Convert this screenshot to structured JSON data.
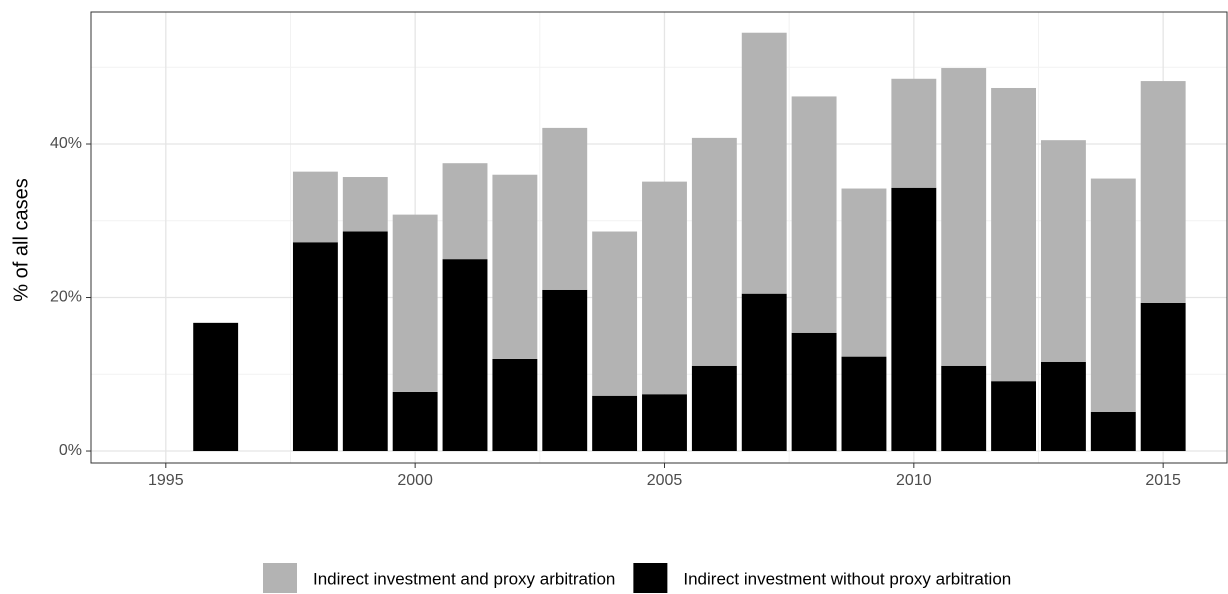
{
  "chart_data": {
    "type": "bar",
    "stacked": true,
    "y_label": "% of all cases",
    "x": [
      1996,
      1998,
      1999,
      2000,
      2001,
      2002,
      2003,
      2004,
      2005,
      2006,
      2007,
      2008,
      2009,
      2010,
      2011,
      2012,
      2013,
      2014,
      2015
    ],
    "series": [
      {
        "name": "Indirect investment and proxy arbitration",
        "color": "#b3b3b3",
        "values": [
          null,
          9.2,
          7.1,
          23.1,
          12.5,
          24.0,
          21.1,
          21.4,
          27.7,
          29.7,
          34.0,
          30.8,
          21.9,
          14.2,
          38.8,
          38.2,
          28.9,
          30.4,
          28.9
        ]
      },
      {
        "name": "Indirect investment without proxy arbitration",
        "color": "#000000",
        "values": [
          16.7,
          27.2,
          28.6,
          7.7,
          25.0,
          12.0,
          21.0,
          7.2,
          7.4,
          11.1,
          20.5,
          15.4,
          12.3,
          34.3,
          11.1,
          9.1,
          11.6,
          5.1,
          19.3
        ]
      }
    ],
    "xlim": [
      1993.5,
      2016.28
    ],
    "xticks": [
      1995,
      2000,
      2005,
      2010,
      2015
    ],
    "x_minor_ticks": [
      1997.5,
      2002.5,
      2007.5,
      2012.5
    ],
    "ylim": [
      -1.56,
      57.2
    ],
    "yticks": [
      {
        "value": 0,
        "label": "0%"
      },
      {
        "value": 20,
        "label": "20%"
      },
      {
        "value": 40,
        "label": "40%"
      }
    ],
    "y_minor_ticks": [
      10,
      30,
      50
    ],
    "grid": true,
    "legend": "bottom"
  }
}
